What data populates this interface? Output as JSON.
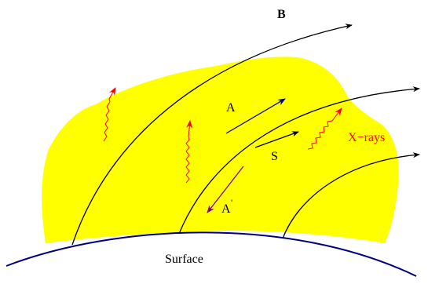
{
  "labels": {
    "field": "B",
    "region_a": "A",
    "region_a_prime": "A",
    "prime_mark": "'",
    "region_s": "S",
    "xrays": "X−rays",
    "surface": "Surface"
  },
  "colors": {
    "blob_fill": "#ffff00",
    "field_lines": "#000000",
    "surface": "#000080",
    "arrow_a": "#000080",
    "arrow_a_prime": "#800080",
    "xrays": "#ff0000",
    "text": "#000000"
  }
}
